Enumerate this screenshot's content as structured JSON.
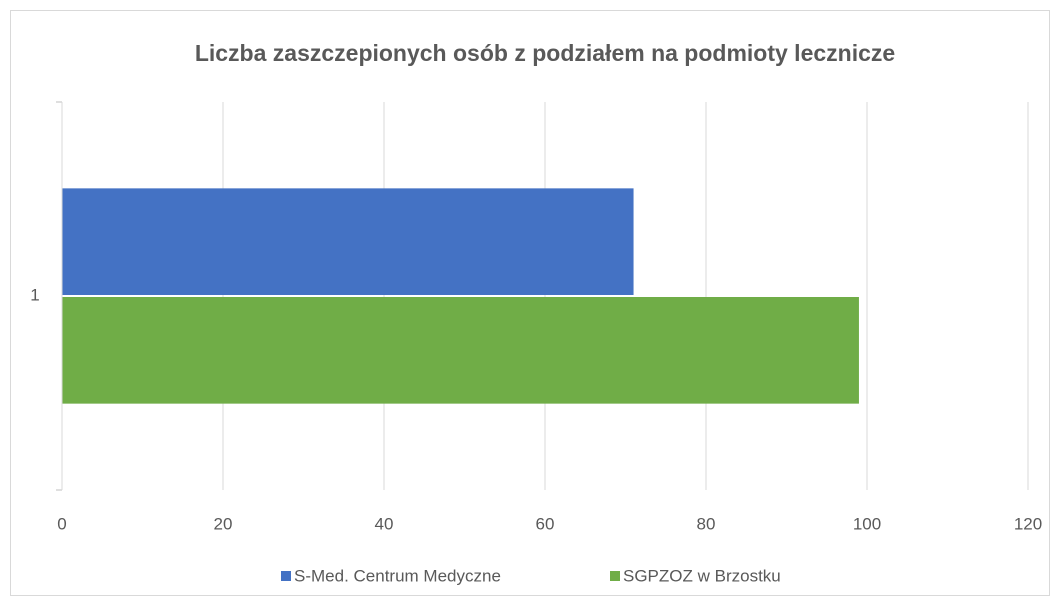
{
  "chart_data": {
    "type": "bar",
    "orientation": "horizontal",
    "title": "Liczba zaszczepionych osób z podziałem na podmioty lecznicze",
    "categories": [
      "1"
    ],
    "series": [
      {
        "name": "S-Med. Centrum Medyczne",
        "color": "#4472c4",
        "values": [
          71
        ]
      },
      {
        "name": "SGPZOZ w Brzostku",
        "color": "#70ad47",
        "values": [
          99
        ]
      }
    ],
    "xlim": [
      0,
      120
    ],
    "xticks": [
      0,
      20,
      40,
      60,
      80,
      100,
      120
    ],
    "grid": true,
    "legend": "bottom"
  }
}
